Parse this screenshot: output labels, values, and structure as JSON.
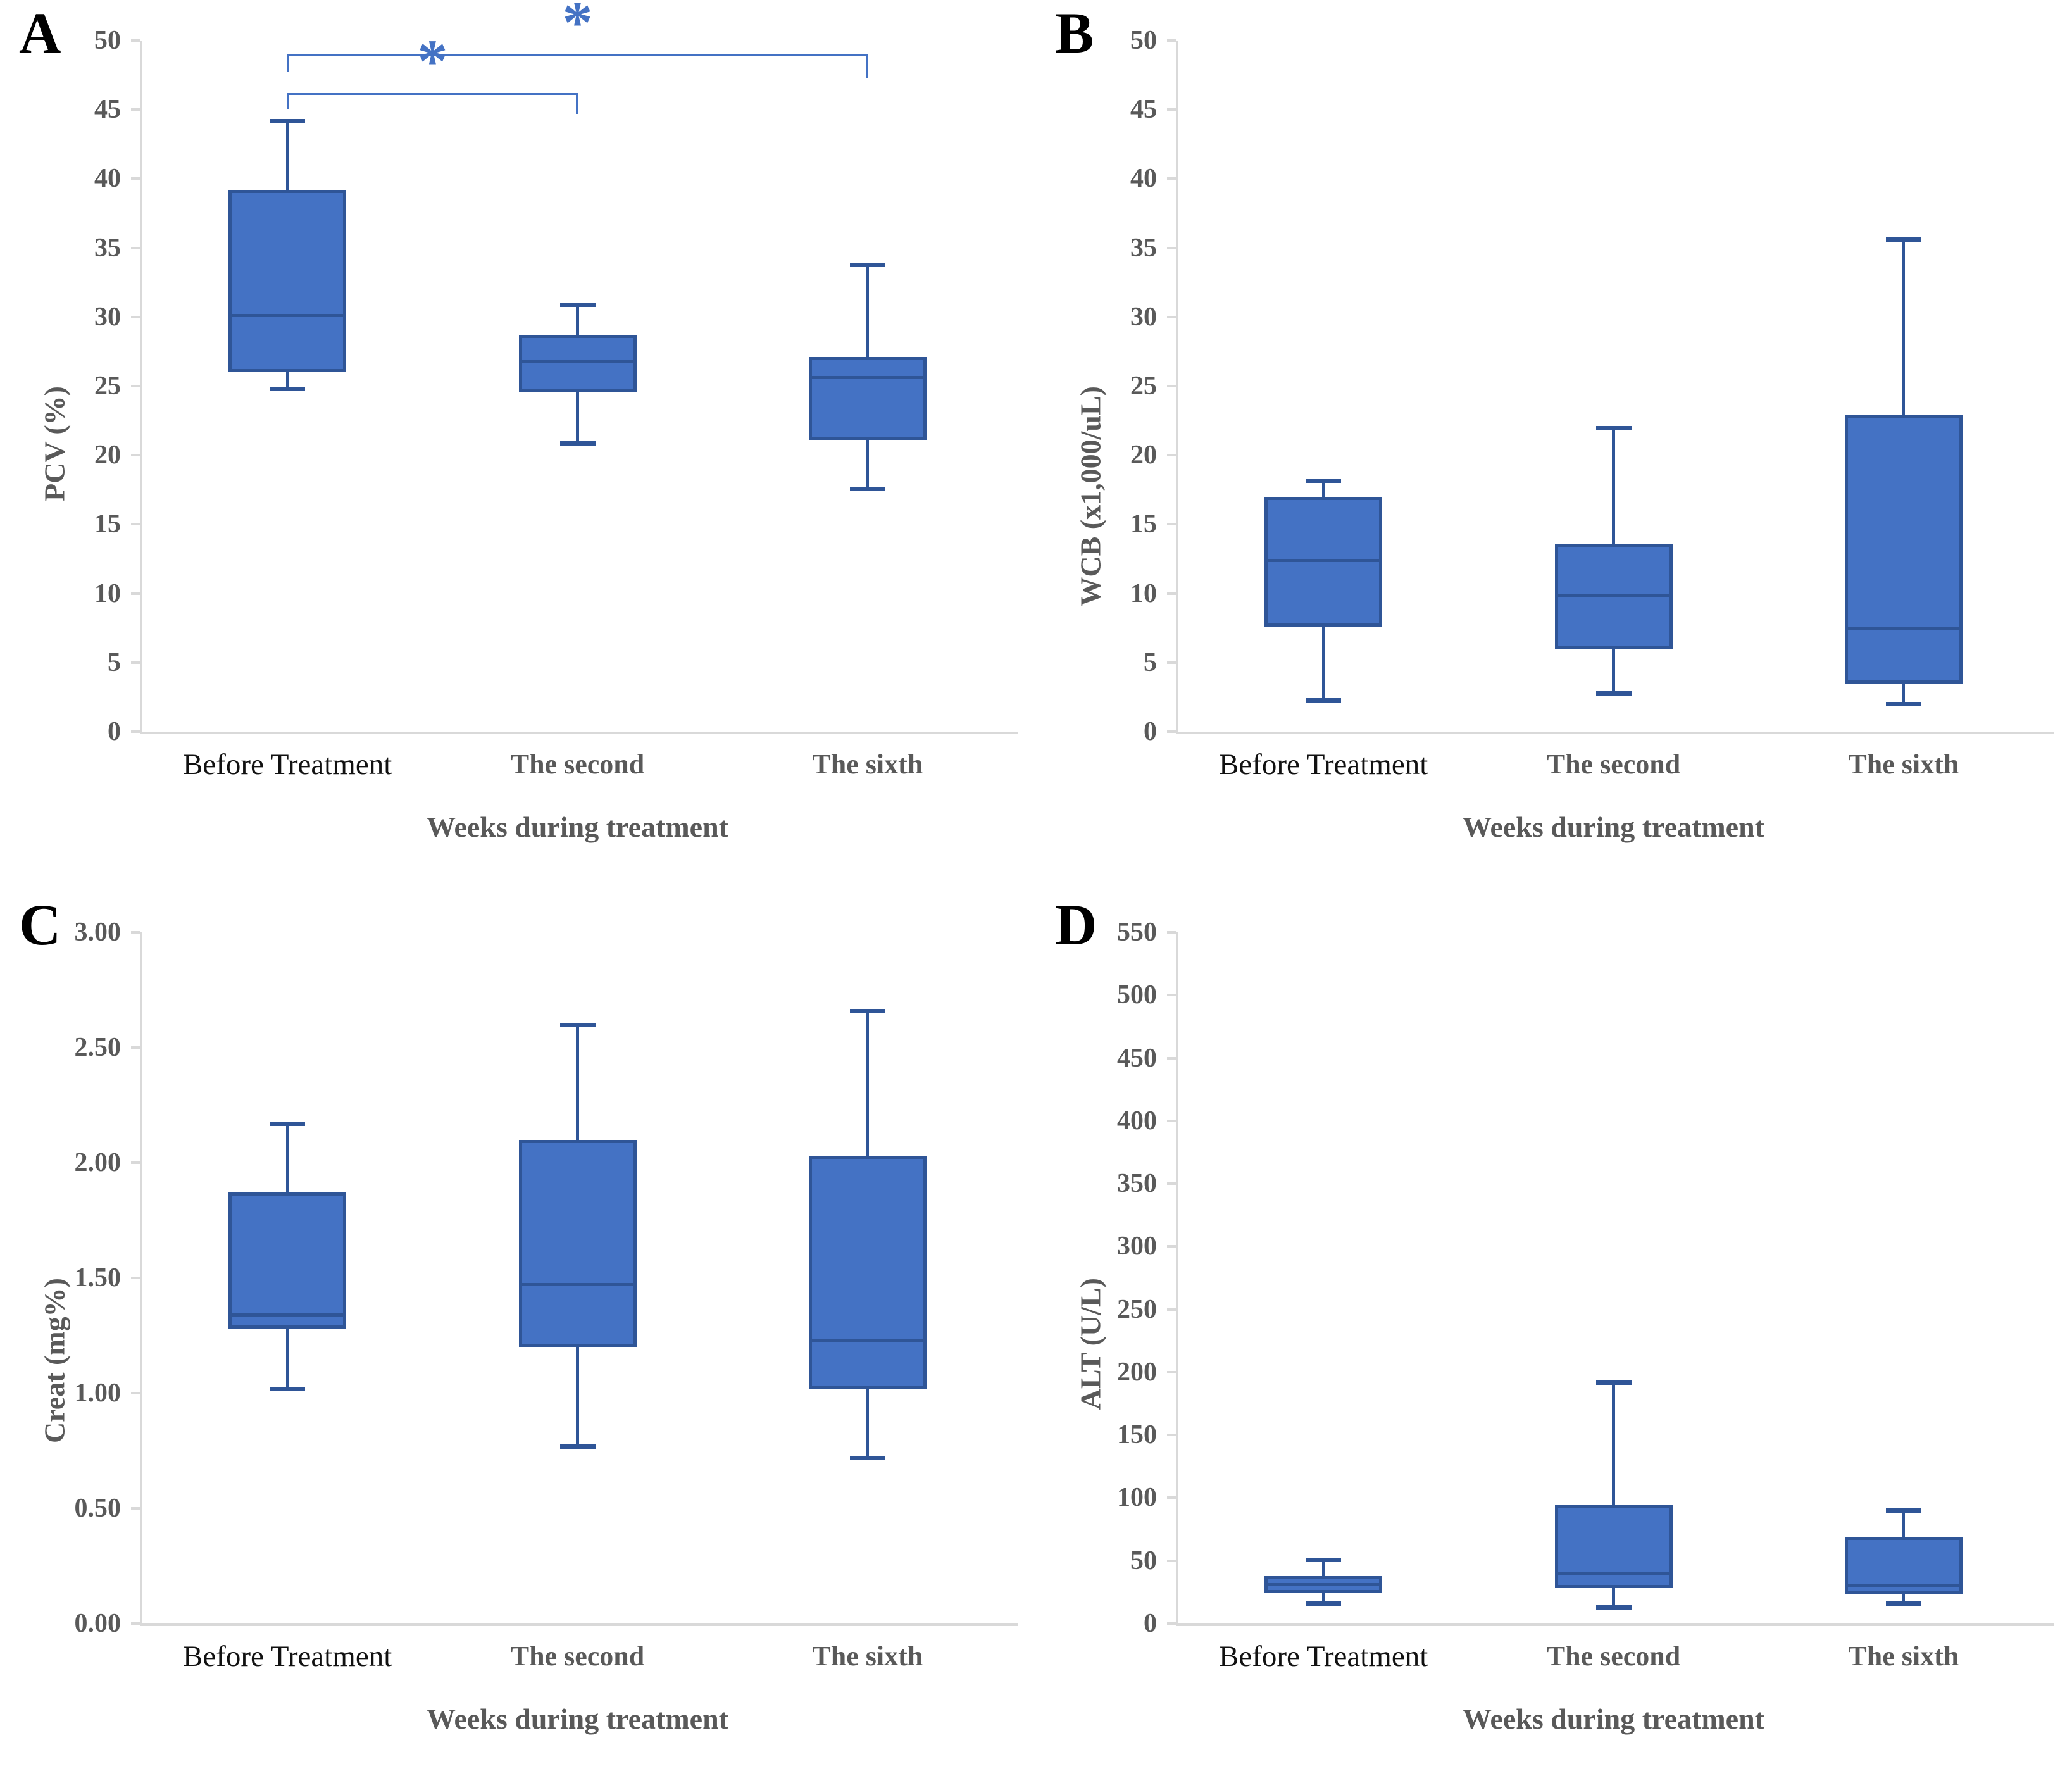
{
  "figure": {
    "background": "#ffffff",
    "xlabel": "Weeks during treatment",
    "categories": [
      "Before Treatment",
      "The second",
      "The sixth"
    ],
    "colors": {
      "box_fill": "#4472C4",
      "box_border": "#2F5597",
      "whisker": "#2F5597",
      "median": "#2F5597",
      "axis_line": "#D9D9D9",
      "tick_text": "#595959",
      "axis_title_text": "#595959",
      "first_category_text": "#111111",
      "bracket": "#4472C4",
      "panel_letter": "#000000"
    }
  },
  "chart_data": [
    {
      "type": "box",
      "panel_label": "A",
      "ylabel": "PCV (%)",
      "xlabel": "Weeks during treatment",
      "ylim": [
        0,
        50
      ],
      "yticks": [
        "0",
        "5",
        "10",
        "15",
        "20",
        "25",
        "30",
        "35",
        "40",
        "45",
        "50"
      ],
      "grid": false,
      "legend": "none",
      "categories": [
        "Before Treatment",
        "The second",
        "The sixth"
      ],
      "series": [
        {
          "name": "Before Treatment",
          "min": 24.8,
          "q1": 26.0,
          "median": 30.1,
          "q3": 39.2,
          "max": 44.2
        },
        {
          "name": "The second",
          "min": 20.9,
          "q1": 24.6,
          "median": 26.8,
          "q3": 28.7,
          "max": 30.9
        },
        {
          "name": "The sixth",
          "min": 17.6,
          "q1": 21.1,
          "median": 25.6,
          "q3": 27.1,
          "max": 33.8
        }
      ],
      "significance_brackets": [
        {
          "from_category": 0,
          "to_category": 1,
          "y": 46.2,
          "drop_from": 1.2,
          "drop_to": 1.5,
          "label": "*"
        },
        {
          "from_category": 0,
          "to_category": 2,
          "y": 49.0,
          "drop_from": 1.3,
          "drop_to": 1.7,
          "label": "*"
        }
      ]
    },
    {
      "type": "box",
      "panel_label": "B",
      "ylabel": "WCB (x1,000/uL)",
      "xlabel": "Weeks during treatment",
      "ylim": [
        0,
        50
      ],
      "yticks": [
        "0",
        "5",
        "10",
        "15",
        "20",
        "25",
        "30",
        "35",
        "40",
        "45",
        "50"
      ],
      "grid": false,
      "legend": "none",
      "categories": [
        "Before Treatment",
        "The second",
        "The sixth"
      ],
      "series": [
        {
          "name": "Before Treatment",
          "min": 2.3,
          "q1": 7.6,
          "median": 12.4,
          "q3": 17.0,
          "max": 18.2
        },
        {
          "name": "The second",
          "min": 2.8,
          "q1": 6.0,
          "median": 9.8,
          "q3": 13.6,
          "max": 22.0
        },
        {
          "name": "The sixth",
          "min": 2.0,
          "q1": 3.5,
          "median": 7.5,
          "q3": 22.9,
          "max": 35.6
        }
      ],
      "significance_brackets": []
    },
    {
      "type": "box",
      "panel_label": "C",
      "ylabel": "Creat (mg%)",
      "xlabel": "Weeks during treatment",
      "ylim": [
        0,
        3
      ],
      "yticks": [
        "0.00",
        "0.50",
        "1.00",
        "1.50",
        "2.00",
        "2.50",
        "3.00"
      ],
      "grid": false,
      "legend": "none",
      "categories": [
        "Before Treatment",
        "The second",
        "The sixth"
      ],
      "series": [
        {
          "name": "Before Treatment",
          "min": 1.02,
          "q1": 1.28,
          "median": 1.34,
          "q3": 1.87,
          "max": 2.17
        },
        {
          "name": "The second",
          "min": 0.77,
          "q1": 1.2,
          "median": 1.47,
          "q3": 2.1,
          "max": 2.6
        },
        {
          "name": "The sixth",
          "min": 0.72,
          "q1": 1.02,
          "median": 1.23,
          "q3": 2.03,
          "max": 2.66
        }
      ],
      "significance_brackets": []
    },
    {
      "type": "box",
      "panel_label": "D",
      "ylabel": "ALT (U/L)",
      "xlabel": "Weeks during treatment",
      "ylim": [
        0,
        550
      ],
      "yticks": [
        "0",
        "50",
        "100",
        "150",
        "200",
        "250",
        "300",
        "350",
        "400",
        "450",
        "500",
        "550"
      ],
      "grid": false,
      "legend": "none",
      "categories": [
        "Before Treatment",
        "The second",
        "The sixth"
      ],
      "series": [
        {
          "name": "Before Treatment",
          "min": 16,
          "q1": 24,
          "median": 31,
          "q3": 38,
          "max": 51
        },
        {
          "name": "The second",
          "min": 13,
          "q1": 28,
          "median": 40,
          "q3": 94,
          "max": 192
        },
        {
          "name": "The sixth",
          "min": 16,
          "q1": 23,
          "median": 30,
          "q3": 69,
          "max": 90
        }
      ],
      "significance_brackets": []
    }
  ]
}
